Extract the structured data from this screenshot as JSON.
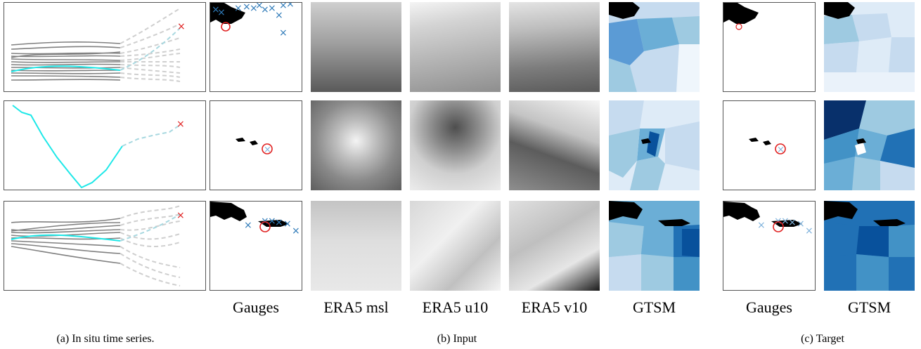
{
  "figure": {
    "column_labels": {
      "gauges_input": "Gauges",
      "era5_msl": "ERA5 msl",
      "era5_u10": "ERA5 u10",
      "era5_v10": "ERA5 v10",
      "gtsm_input": "GTSM",
      "gauges_target": "Gauges",
      "gtsm_target": "GTSM"
    },
    "captions": {
      "a": "(a) In situ time series.",
      "b": "(b) Input",
      "c": "(c) Target"
    },
    "colors": {
      "series_gray": "#808080",
      "series_highlight": "#1ee8e8",
      "forecast_dashed": "#cfcfcf",
      "forecast_highlight": "#a8d8e0",
      "marker_red": "#e02020",
      "gauge_blue": "#2e7ab8",
      "gauge_light_blue": "#7fb2dc",
      "land": "#000000"
    }
  }
}
